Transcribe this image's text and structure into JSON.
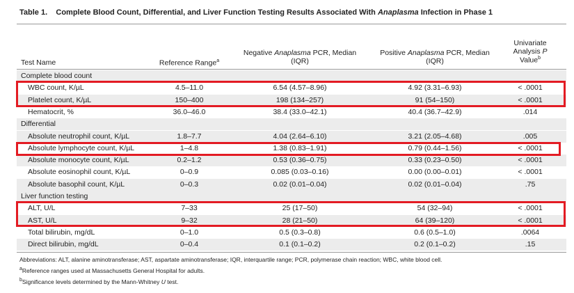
{
  "title": {
    "label": "Table 1.",
    "pre": "Complete Blood Count, Differential, and Liver Function Testing Results Associated With ",
    "italic": "Anaplasma",
    "post": " Infection in Phase 1"
  },
  "header": {
    "test": "Test Name",
    "ref": {
      "text": "Reference Range",
      "sup": "a"
    },
    "neg": {
      "pre": "Negative ",
      "italic": "Anaplasma",
      "post": " PCR, Median",
      "line2": "(IQR)"
    },
    "pos": {
      "pre": "Positive ",
      "italic": "Anaplasma",
      "post": " PCR, Median",
      "line2": "(IQR)"
    },
    "p": {
      "line1": "Univariate",
      "pre": "Analysis ",
      "italic": "P",
      "line3": "Value",
      "sup": "b"
    }
  },
  "sections": [
    {
      "title": "Complete blood count",
      "rows": [
        [
          "WBC count, K/µL",
          "4.5–11.0",
          "6.54 (4.57–8.96)",
          "4.92 (3.31–6.93)",
          "< .0001"
        ],
        [
          "Platelet count, K/µL",
          "150–400",
          "198 (134–257)",
          "91 (54–150)",
          "< .0001"
        ],
        [
          "Hematocrit, %",
          "36.0–46.0",
          "38.4 (33.0–42.1)",
          "40.4 (36.7–42.9)",
          ".014"
        ]
      ]
    },
    {
      "title": "Differential",
      "rows": [
        [
          "Absolute neutrophil count, K/µL",
          "1.8–7.7",
          "4.04 (2.64–6.10)",
          "3.21 (2.05–4.68)",
          ".005"
        ],
        [
          "Absolute lymphocyte count, K/µL",
          "1–4.8",
          "1.38 (0.83–1.91)",
          "0.79 (0.44–1.56)",
          "< .0001"
        ],
        [
          "Absolute monocyte count, K/µL",
          "0.2–1.2",
          "0.53 (0.36–0.75)",
          "0.33 (0.23–0.50)",
          "< .0001"
        ],
        [
          "Absolute eosinophil count, K/µL",
          "0–0.9",
          "0.085 (0.03–0.16)",
          "0.00 (0.00–0.01)",
          "< .0001"
        ],
        [
          "Absolute basophil count, K/µL",
          "0–0.3",
          "0.02 (0.01–0.04)",
          "0.02 (0.01–0.04)",
          ".75"
        ]
      ]
    },
    {
      "title": "Liver function testing",
      "rows": [
        [
          "ALT, U/L",
          "7–33",
          "25 (17–50)",
          "54 (32–94)",
          "< .0001"
        ],
        [
          "AST, U/L",
          "9–32",
          "28 (21–50)",
          "64 (39–120)",
          "< .0001"
        ],
        [
          "Total bilirubin, mg/dL",
          "0–1.0",
          "0.5 (0.3–0.8)",
          "0.6 (0.5–1.0)",
          ".0064"
        ],
        [
          "Direct bilirubin, mg/dL",
          "0–0.4",
          "0.1 (0.1–0.2)",
          "0.2 (0.1–0.2)",
          ".15"
        ]
      ]
    }
  ],
  "footnotes": {
    "abbreviations": "Abbreviations: ALT, alanine aminotransferase; AST, aspartate aminotransferase; IQR, interquartile range; PCR, polymerase chain reaction; WBC, white blood cell.",
    "a": {
      "sup": "a",
      "text": "Reference ranges used at Massachusetts General Hospital for adults."
    },
    "b": {
      "sup": "b",
      "pre": "Significance levels determined by the Mann-Whitney ",
      "italic": "U",
      "post": " test."
    }
  }
}
